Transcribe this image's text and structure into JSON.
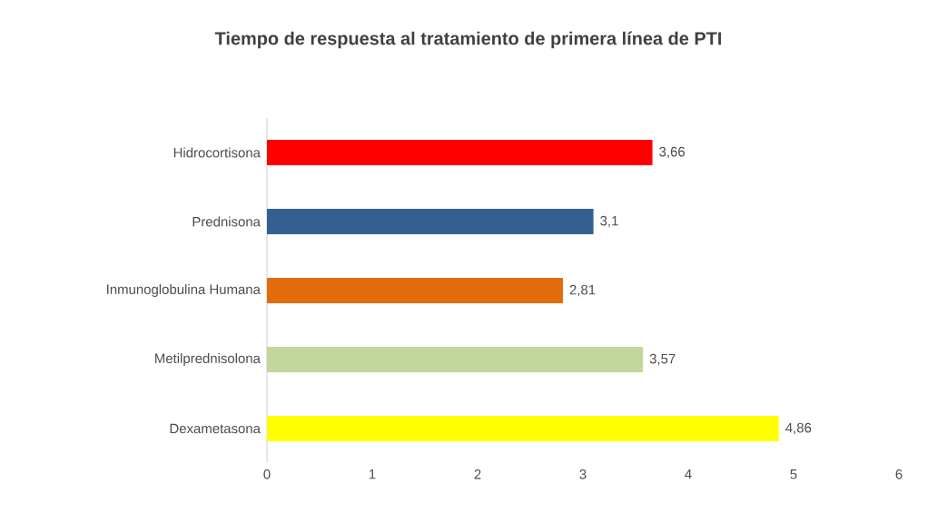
{
  "chart_data": {
    "type": "bar",
    "orientation": "horizontal",
    "title": "Tiempo de respuesta al tratamiento de primera línea de PTI",
    "categories": [
      "Hidrocortisona",
      "Prednisona",
      "Inmunoglobulina Humana",
      "Metilprednisolona",
      "Dexametasona"
    ],
    "values": [
      3.66,
      3.1,
      2.81,
      3.57,
      4.86
    ],
    "value_labels": [
      "3,66",
      "3,1",
      "2,81",
      "3,57",
      "4,86"
    ],
    "colors": [
      "#ff0000",
      "#335f91",
      "#e36c0a",
      "#c3d69b",
      "#ffff00"
    ],
    "xlim": [
      0,
      6
    ],
    "xticks": [
      0,
      1,
      2,
      3,
      4,
      5,
      6
    ],
    "grid": false
  }
}
